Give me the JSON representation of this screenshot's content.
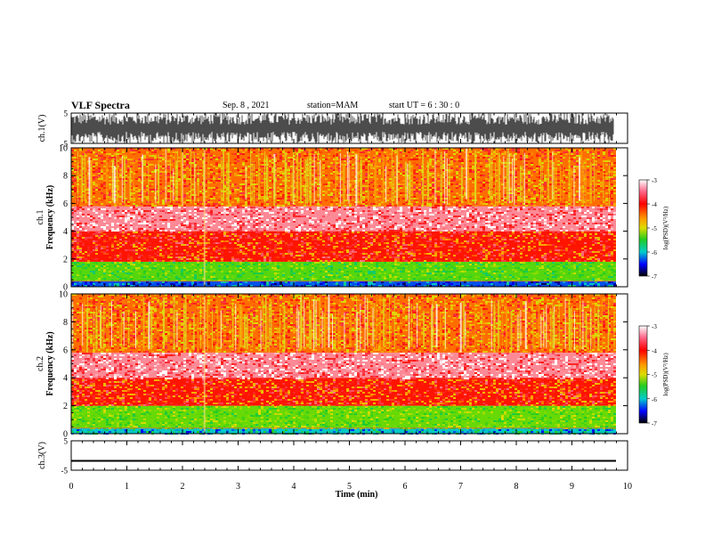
{
  "header": {
    "title": "VLF Spectra",
    "date": "Sep. 8 , 2021",
    "station": "station=MAM",
    "start": "start UT =  6 : 30 : 0"
  },
  "colors": {
    "red": "#ee2222",
    "pink": "#f06070",
    "orange": "#ff9900",
    "yellow": "#dddd00",
    "green": "#33cc22",
    "cyan": "#00cccc",
    "blue": "#0000ff",
    "black": "#000000"
  },
  "chart_data": [
    {
      "type": "line",
      "panel": "ch1-waveform",
      "ylabel": "ch.1(V)",
      "ylim": [
        -5,
        5
      ],
      "yticks": [
        "5",
        "-5"
      ],
      "xlim": [
        0,
        10
      ],
      "description_values": {
        "baseline": 0,
        "envelope_max": 5,
        "envelope_min": -5
      }
    },
    {
      "type": "heatmap",
      "panel": "ch1-spectrogram",
      "ylabel": "ch.1 Frequency (kHz)",
      "ylim": [
        0,
        10
      ],
      "yticks": [
        "0",
        "2",
        "4",
        "6",
        "8",
        "10"
      ],
      "xlim": [
        0,
        9.85
      ],
      "colorbar": {
        "label": "log(PSD)(V²/Hz)",
        "range": [
          -7,
          -3
        ],
        "ticks": [
          "-3",
          "-4",
          "-5",
          "-6",
          "-7"
        ]
      },
      "bands": [
        {
          "f_min": 0,
          "f_max": 0.4,
          "level": -6.3
        },
        {
          "f_min": 0.4,
          "f_max": 1.8,
          "level": -5.2
        },
        {
          "f_min": 1.8,
          "f_max": 4.0,
          "level": -3.9
        },
        {
          "f_min": 4.0,
          "f_max": 5.8,
          "level": -3.3
        },
        {
          "f_min": 5.8,
          "f_max": 10,
          "level": -4.1
        }
      ]
    },
    {
      "type": "heatmap",
      "panel": "ch2-spectrogram",
      "ylabel": "ch.2 Frequency (kHz)",
      "ylim": [
        0,
        10
      ],
      "yticks": [
        "0",
        "2",
        "4",
        "6",
        "8",
        "10"
      ],
      "xlim": [
        0,
        9.85
      ],
      "colorbar": {
        "label": "log(PSD)(V²/Hz)",
        "range": [
          -7,
          -3
        ],
        "ticks": [
          "-3",
          "-4",
          "-5",
          "-6",
          "-7"
        ]
      },
      "bands": [
        {
          "f_min": 0,
          "f_max": 0.4,
          "level": -6.0
        },
        {
          "f_min": 0.4,
          "f_max": 2.0,
          "level": -5.1
        },
        {
          "f_min": 2.0,
          "f_max": 4.0,
          "level": -3.9
        },
        {
          "f_min": 4.0,
          "f_max": 5.8,
          "level": -3.3
        },
        {
          "f_min": 5.8,
          "f_max": 10,
          "level": -4.1
        }
      ]
    },
    {
      "type": "line",
      "panel": "ch3-waveform",
      "ylabel": "ch.3(V)",
      "ylim": [
        -5,
        5
      ],
      "yticks": [
        "5",
        "-5"
      ],
      "xlim": [
        0,
        9.85
      ],
      "level": -1.8
    }
  ],
  "xaxis": {
    "label": "Time (min)",
    "ticks": [
      "0",
      "1",
      "2",
      "3",
      "4",
      "5",
      "6",
      "7",
      "8",
      "9",
      "10"
    ],
    "range": [
      0,
      10
    ]
  }
}
